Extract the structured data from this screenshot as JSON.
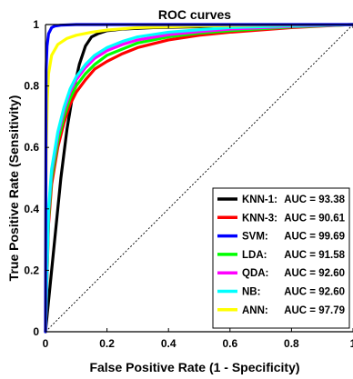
{
  "chart_data": {
    "type": "line",
    "title": "ROC curves",
    "xlabel": "False Positive Rate (1 - Specificity)",
    "ylabel": "True Positive Rate (Sensitivity)",
    "xlim": [
      0,
      1
    ],
    "ylim": [
      0,
      1
    ],
    "x_ticks": [
      "0",
      "0.2",
      "0.4",
      "0.6",
      "0.8",
      "1"
    ],
    "y_ticks": [
      "0",
      "0.2",
      "0.4",
      "0.6",
      "0.8",
      "1"
    ],
    "grid": false,
    "legend_position": "bottom-right",
    "diagonal_reference": {
      "style": "dotted",
      "from": [
        0,
        0
      ],
      "to": [
        1,
        1
      ]
    },
    "series": [
      {
        "name": "KNN-1:",
        "auc_label": "AUC = 93.38",
        "color": "#000000",
        "x": [
          0,
          0.01,
          0.03,
          0.05,
          0.07,
          0.09,
          0.11,
          0.13,
          0.15,
          0.17,
          0.2,
          0.25,
          0.35,
          0.5,
          0.7,
          1.0
        ],
        "y": [
          0,
          0.1,
          0.3,
          0.5,
          0.66,
          0.78,
          0.87,
          0.93,
          0.96,
          0.97,
          0.98,
          0.985,
          0.99,
          0.993,
          0.996,
          1.0
        ]
      },
      {
        "name": "KNN-3:",
        "auc_label": "AUC = 90.61",
        "color": "#ff0000",
        "x": [
          0,
          0.01,
          0.02,
          0.04,
          0.06,
          0.08,
          0.1,
          0.13,
          0.16,
          0.2,
          0.25,
          0.3,
          0.4,
          0.5,
          0.6,
          0.8,
          1.0
        ],
        "y": [
          0,
          0.35,
          0.48,
          0.6,
          0.68,
          0.74,
          0.78,
          0.82,
          0.855,
          0.88,
          0.905,
          0.925,
          0.95,
          0.965,
          0.975,
          0.99,
          1.0
        ]
      },
      {
        "name": "SVM:",
        "auc_label": "AUC = 99.69",
        "color": "#0000ff",
        "x": [
          0,
          0.002,
          0.005,
          0.01,
          0.02,
          0.03,
          0.05,
          0.1,
          1.0
        ],
        "y": [
          0,
          0.85,
          0.93,
          0.97,
          0.99,
          0.995,
          0.998,
          1.0,
          1.0
        ]
      },
      {
        "name": "LDA:",
        "auc_label": "AUC = 91.58",
        "color": "#00ff00",
        "x": [
          0,
          0.01,
          0.02,
          0.04,
          0.06,
          0.08,
          0.1,
          0.13,
          0.16,
          0.2,
          0.25,
          0.3,
          0.4,
          0.5,
          0.6,
          0.8,
          1.0
        ],
        "y": [
          0,
          0.37,
          0.5,
          0.62,
          0.7,
          0.76,
          0.8,
          0.84,
          0.87,
          0.9,
          0.92,
          0.94,
          0.96,
          0.972,
          0.98,
          0.992,
          1.0
        ]
      },
      {
        "name": "QDA:",
        "auc_label": "AUC = 92.60",
        "color": "#ff00ff",
        "x": [
          0,
          0.01,
          0.02,
          0.04,
          0.06,
          0.08,
          0.1,
          0.13,
          0.16,
          0.2,
          0.25,
          0.3,
          0.4,
          0.5,
          0.6,
          0.8,
          1.0
        ],
        "y": [
          0,
          0.39,
          0.52,
          0.64,
          0.72,
          0.78,
          0.82,
          0.86,
          0.89,
          0.915,
          0.935,
          0.95,
          0.967,
          0.977,
          0.985,
          0.994,
          1.0
        ]
      },
      {
        "name": "NB:",
        "auc_label": "AUC = 92.60",
        "color": "#00ffff",
        "x": [
          0,
          0.01,
          0.02,
          0.04,
          0.06,
          0.08,
          0.1,
          0.13,
          0.16,
          0.2,
          0.25,
          0.3,
          0.4,
          0.5,
          0.6,
          0.8,
          1.0
        ],
        "y": [
          0,
          0.4,
          0.53,
          0.65,
          0.73,
          0.79,
          0.83,
          0.87,
          0.9,
          0.925,
          0.945,
          0.96,
          0.975,
          0.983,
          0.99,
          0.996,
          1.0
        ]
      },
      {
        "name": "ANN:",
        "auc_label": "AUC = 97.79",
        "color": "#ffff00",
        "x": [
          0,
          0.001,
          0.003,
          0.006,
          0.01,
          0.02,
          0.04,
          0.07,
          0.1,
          0.15,
          0.2,
          0.3,
          0.5,
          0.7,
          1.0
        ],
        "y": [
          0,
          0.4,
          0.62,
          0.76,
          0.84,
          0.9,
          0.935,
          0.955,
          0.965,
          0.975,
          0.982,
          0.99,
          0.995,
          0.998,
          1.0
        ]
      }
    ]
  }
}
